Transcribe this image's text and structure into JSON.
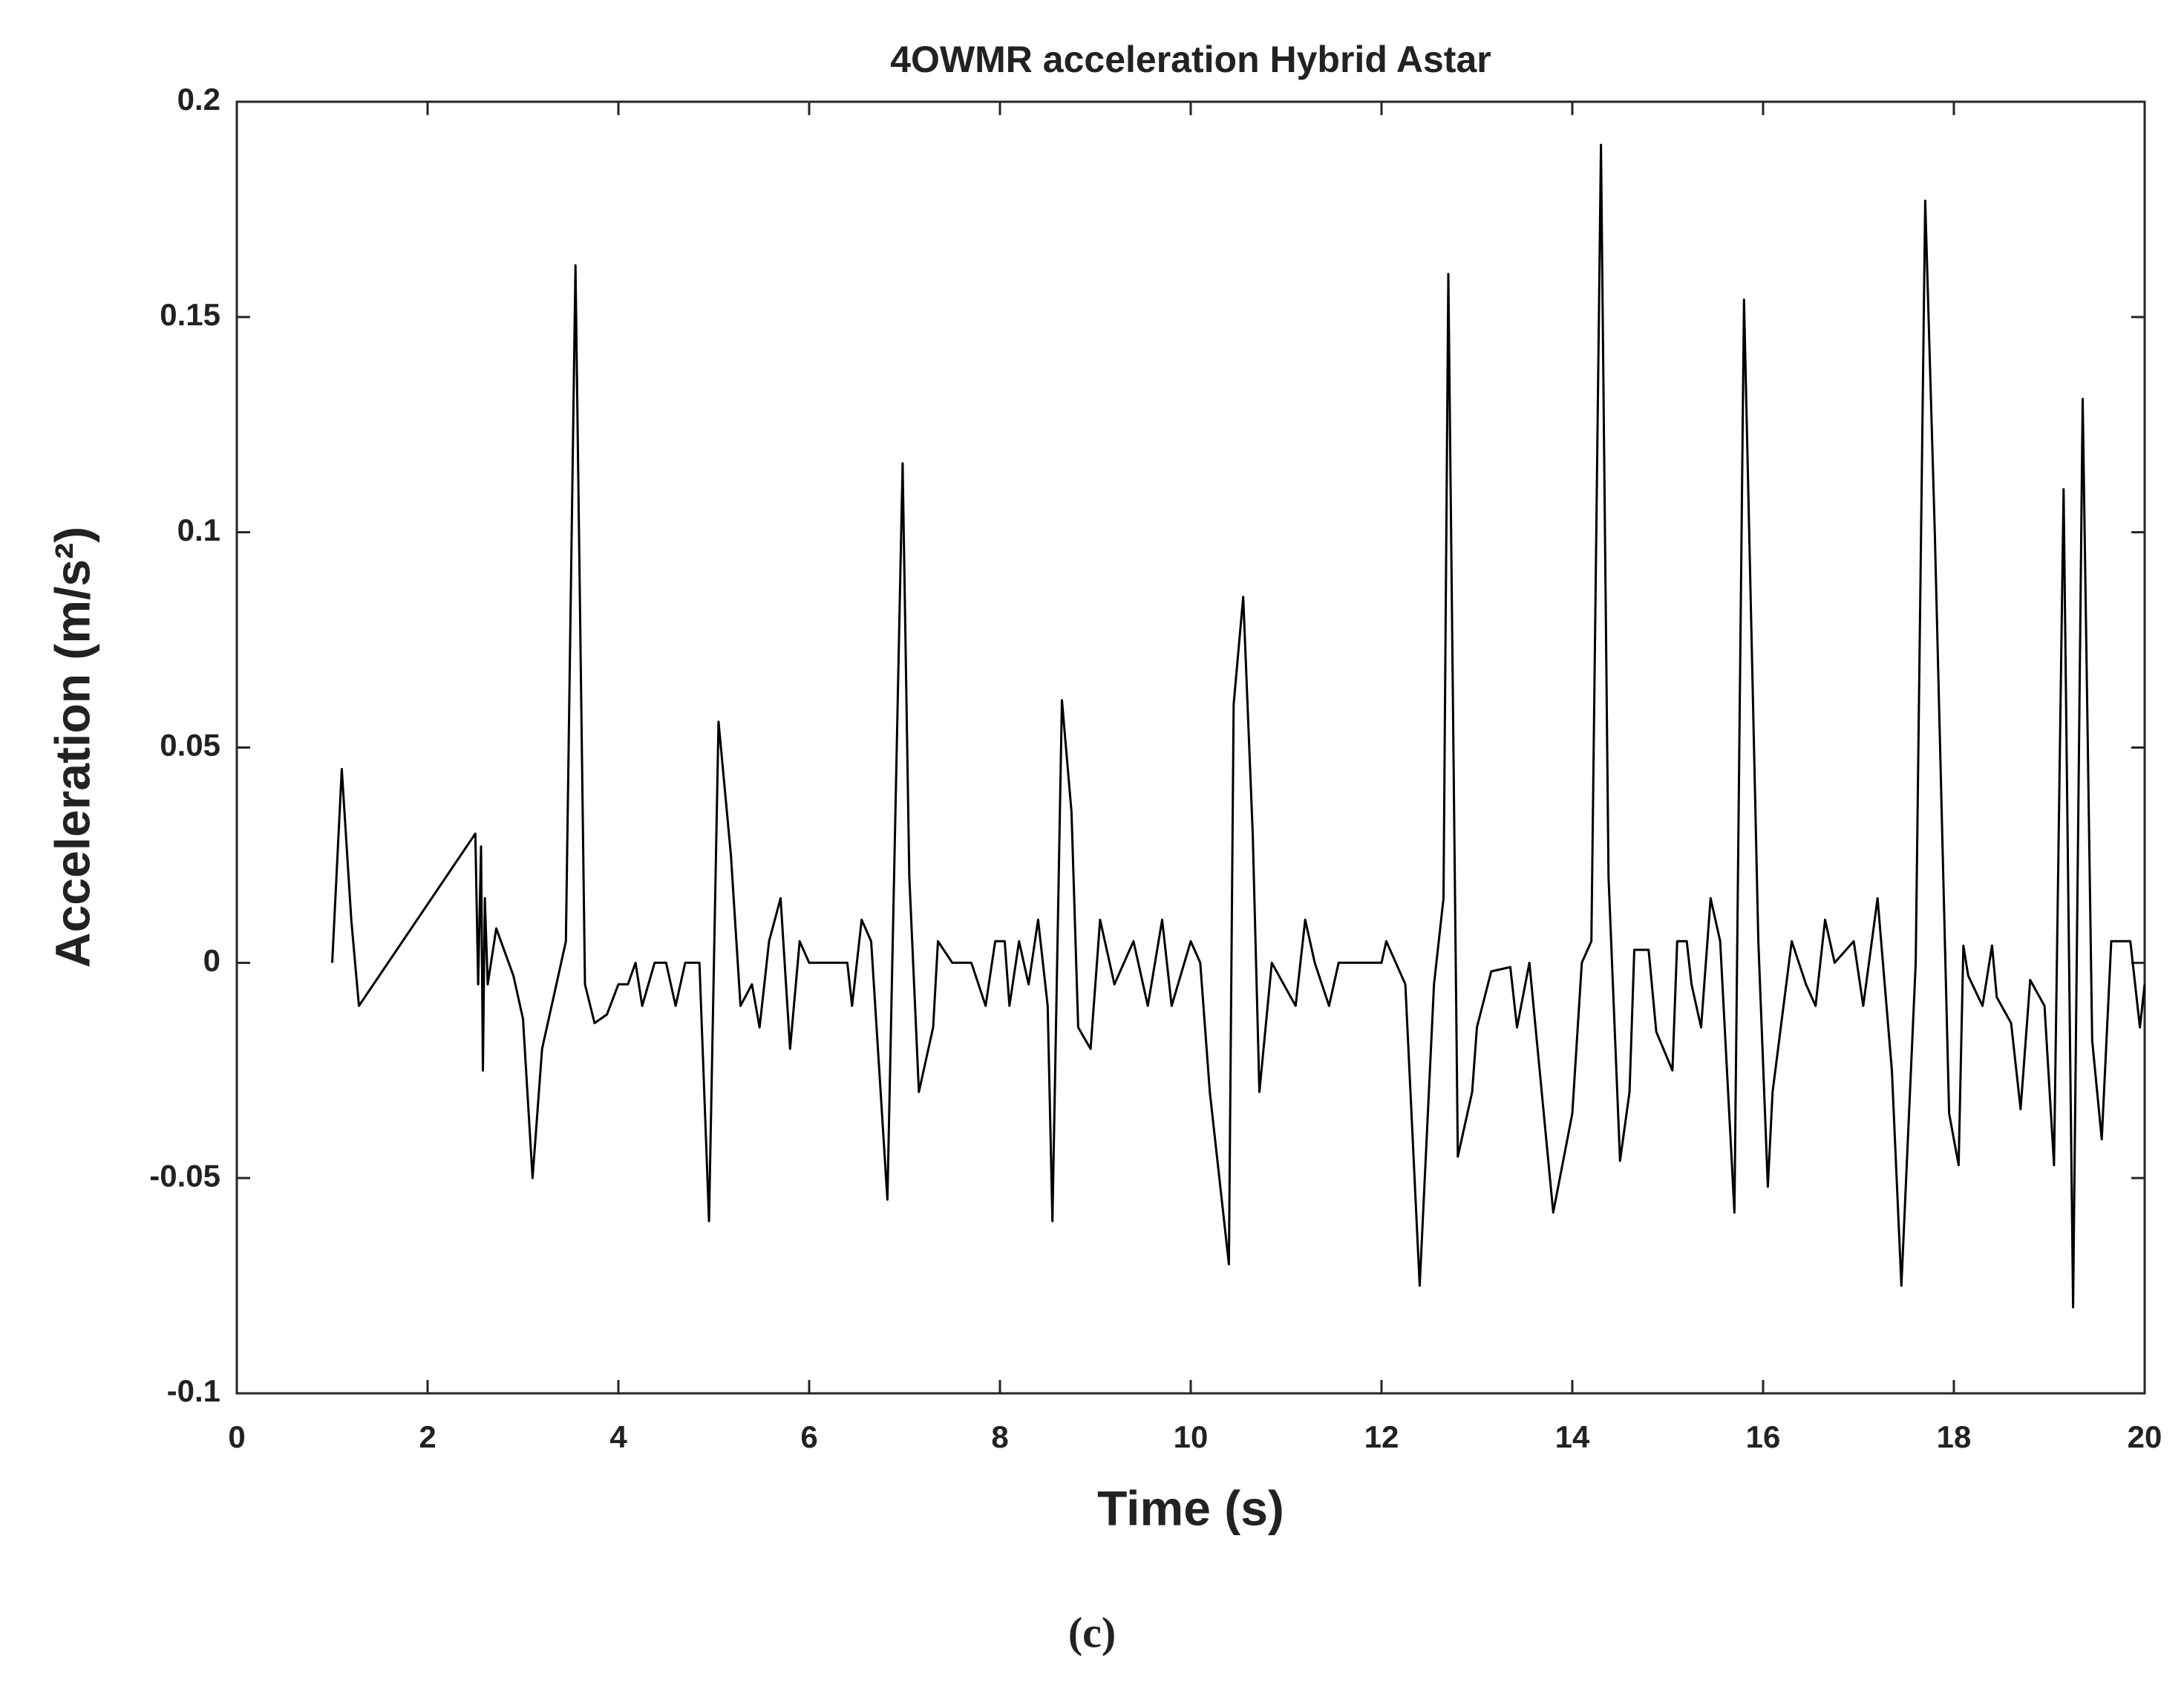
{
  "chart_data": {
    "type": "line",
    "title": "4OWMR acceleration Hybrid Astar",
    "xlabel": "Time (s)",
    "ylabel": "Acceleration (m/s²)",
    "xlim": [
      0,
      20
    ],
    "xticks": [
      0,
      2,
      4,
      6,
      8,
      10,
      12,
      14,
      16,
      18,
      20
    ],
    "ylim": [
      -0.1,
      0.2
    ],
    "yticks": [
      -0.1,
      -0.05,
      0,
      0.05,
      0.1,
      0.15,
      0.2
    ],
    "series": [
      {
        "color": "#000000",
        "x": [
          1.0,
          1.1,
          1.2,
          1.28,
          2.5,
          2.53,
          2.56,
          2.58,
          2.6,
          2.63,
          2.72,
          2.9,
          3.0,
          3.1,
          3.2,
          3.35,
          3.45,
          3.55,
          3.65,
          3.75,
          3.88,
          4.0,
          4.1,
          4.18,
          4.25,
          4.38,
          4.5,
          4.6,
          4.7,
          4.85,
          4.95,
          5.05,
          5.18,
          5.28,
          5.4,
          5.48,
          5.58,
          5.7,
          5.8,
          5.9,
          6.0,
          6.2,
          6.4,
          6.45,
          6.55,
          6.65,
          6.82,
          6.98,
          7.05,
          7.15,
          7.3,
          7.35,
          7.5,
          7.7,
          7.85,
          7.95,
          8.05,
          8.1,
          8.2,
          8.3,
          8.4,
          8.5,
          8.55,
          8.65,
          8.75,
          8.82,
          8.95,
          9.05,
          9.2,
          9.4,
          9.55,
          9.7,
          9.8,
          10.0,
          10.1,
          10.2,
          10.4,
          10.45,
          10.55,
          10.65,
          10.72,
          10.85,
          11.1,
          11.2,
          11.3,
          11.45,
          11.55,
          11.8,
          12.0,
          12.05,
          12.15,
          12.25,
          12.4,
          12.55,
          12.65,
          12.7,
          12.8,
          12.95,
          13.0,
          13.15,
          13.35,
          13.42,
          13.55,
          13.8,
          14.0,
          14.1,
          14.2,
          14.3,
          14.38,
          14.5,
          14.6,
          14.65,
          14.8,
          14.88,
          15.05,
          15.1,
          15.2,
          15.25,
          15.35,
          15.45,
          15.55,
          15.7,
          15.8,
          15.95,
          16.05,
          16.1,
          16.3,
          16.45,
          16.55,
          16.65,
          16.75,
          16.95,
          17.05,
          17.2,
          17.35,
          17.45,
          17.6,
          17.7,
          17.8,
          17.95,
          18.05,
          18.1,
          18.15,
          18.3,
          18.4,
          18.45,
          18.6,
          18.7,
          18.8,
          18.95,
          19.05,
          19.15,
          19.25,
          19.35,
          19.45,
          19.55,
          19.65,
          19.85,
          19.95,
          20.0
        ],
        "values": [
          0,
          0.045,
          0.01,
          -0.01,
          0.03,
          -0.005,
          0.027,
          -0.025,
          0.015,
          -0.005,
          0.008,
          -0.003,
          -0.013,
          -0.05,
          -0.02,
          -0.005,
          0.005,
          0.162,
          -0.005,
          -0.014,
          -0.012,
          -0.005,
          -0.005,
          0,
          -0.01,
          0,
          0,
          -0.01,
          0,
          0,
          -0.06,
          0.056,
          0.025,
          -0.01,
          -0.005,
          -0.015,
          0.005,
          0.015,
          -0.02,
          0.005,
          0,
          0,
          0,
          -0.01,
          0.01,
          0.005,
          -0.055,
          0.116,
          0.02,
          -0.03,
          -0.015,
          0.005,
          0,
          0,
          -0.01,
          0.005,
          0.005,
          -0.01,
          0.005,
          -0.005,
          0.01,
          -0.01,
          -0.06,
          0.061,
          0.035,
          -0.015,
          -0.02,
          0.01,
          -0.005,
          0.005,
          -0.01,
          0.01,
          -0.01,
          0.005,
          0,
          -0.03,
          -0.07,
          0.06,
          0.085,
          0.03,
          -0.03,
          0,
          -0.01,
          0.01,
          0,
          -0.01,
          0,
          0,
          0,
          0.005,
          0,
          -0.005,
          -0.075,
          -0.005,
          0.015,
          0.16,
          -0.045,
          -0.03,
          -0.015,
          -0.002,
          -0.001,
          -0.015,
          0,
          -0.058,
          -0.035,
          0,
          0.005,
          0.19,
          0.02,
          -0.046,
          -0.03,
          0.003,
          0.003,
          -0.016,
          -0.025,
          0.005,
          0.005,
          -0.005,
          -0.015,
          0.015,
          0.005,
          -0.058,
          0.154,
          0.005,
          -0.052,
          -0.03,
          0.005,
          -0.005,
          -0.01,
          0.01,
          0,
          0.005,
          -0.01,
          0.015,
          -0.025,
          -0.075,
          0,
          0.177,
          0.1,
          -0.035,
          -0.047,
          0.004,
          -0.003,
          -0.01,
          0.004,
          -0.008,
          -0.014,
          -0.034,
          -0.004,
          -0.01,
          -0.047,
          0.11,
          -0.08,
          0.131,
          -0.018,
          -0.041,
          0.005,
          0.005,
          -0.015,
          -0.005
        ]
      }
    ]
  },
  "caption": "(c)"
}
